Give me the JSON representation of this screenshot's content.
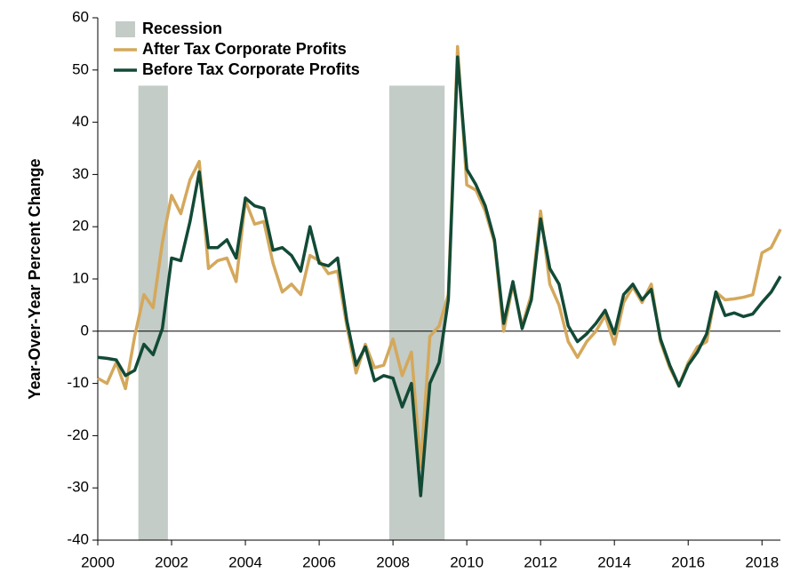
{
  "chart_data": {
    "type": "line",
    "y_label": "Year-Over-Year  Percent Change",
    "x": [
      2000,
      2000.25,
      2000.5,
      2000.75,
      2001,
      2001.25,
      2001.5,
      2001.75,
      2002,
      2002.25,
      2002.5,
      2002.75,
      2003,
      2003.25,
      2003.5,
      2003.75,
      2004,
      2004.25,
      2004.5,
      2004.75,
      2005,
      2005.25,
      2005.5,
      2005.75,
      2006,
      2006.25,
      2006.5,
      2006.75,
      2007,
      2007.25,
      2007.5,
      2007.75,
      2008,
      2008.25,
      2008.5,
      2008.75,
      2009,
      2009.25,
      2009.5,
      2009.75,
      2010,
      2010.25,
      2010.5,
      2010.75,
      2011,
      2011.25,
      2011.5,
      2011.75,
      2012,
      2012.25,
      2012.5,
      2012.75,
      2013,
      2013.25,
      2013.5,
      2013.75,
      2014,
      2014.25,
      2014.5,
      2014.75,
      2015,
      2015.25,
      2015.5,
      2015.75,
      2016,
      2016.25,
      2016.5,
      2016.75,
      2017,
      2017.25,
      2017.5,
      2017.75,
      2018,
      2018.25,
      2018.5
    ],
    "series": [
      {
        "name": "After Tax Corporate Profits",
        "color": "#d4a85c",
        "values": [
          -9,
          -10,
          -6,
          -11,
          -1,
          7,
          4.5,
          17,
          26,
          22.5,
          29,
          32.5,
          12,
          13.5,
          14,
          9.5,
          25,
          20.5,
          21,
          13,
          7.5,
          9,
          7,
          14.5,
          13.5,
          11,
          11.5,
          1,
          -8,
          -2.5,
          -7,
          -6.5,
          -1.5,
          -8.5,
          -4,
          -26,
          -1,
          1,
          7,
          54.5,
          28,
          27,
          23,
          17,
          0,
          9,
          1,
          7,
          23,
          9,
          5,
          -2,
          -5,
          -2,
          0,
          3,
          -2.5,
          5.5,
          8.5,
          5.5,
          9,
          -2,
          -7,
          -10.5,
          -6,
          -3,
          -2,
          7.5,
          6,
          6.2,
          6.5,
          7,
          15,
          16,
          19.5
        ]
      },
      {
        "name": "Before Tax Corporate Profits",
        "color": "#124a36",
        "values": [
          -5,
          -5.2,
          -5.5,
          -8.5,
          -7.5,
          -2.5,
          -4.5,
          0.5,
          14,
          13.5,
          21,
          30.5,
          16,
          16,
          17.5,
          14,
          25.5,
          24,
          23.5,
          15.5,
          16,
          14.5,
          11.5,
          20,
          13,
          12.5,
          14,
          2,
          -6.5,
          -3,
          -9.5,
          -8.5,
          -9,
          -14.5,
          -10,
          -31.5,
          -10,
          -6,
          6,
          52.5,
          31,
          28,
          24,
          17.5,
          1.5,
          9.5,
          0.5,
          6,
          21.5,
          12,
          9,
          1,
          -2,
          -0.5,
          1.5,
          4,
          -0.5,
          7,
          9,
          6,
          8,
          -1.5,
          -6.5,
          -10.5,
          -6.5,
          -4,
          -0.5,
          7.5,
          3,
          3.5,
          2.8,
          3.3,
          5.5,
          7.5,
          10.5
        ]
      }
    ],
    "recession": {
      "name": "Recession",
      "color": "#c3ccc6",
      "spans": [
        [
          2001.1,
          2001.9
        ],
        [
          2007.9,
          2009.4
        ]
      ],
      "top": 47
    },
    "xlim": [
      2000,
      2018.5
    ],
    "xticks": [
      2000,
      2002,
      2004,
      2006,
      2008,
      2010,
      2012,
      2014,
      2016,
      2018
    ],
    "ylim": [
      -40,
      60
    ],
    "yticks": [
      -40,
      -30,
      -20,
      -10,
      0,
      10,
      20,
      30,
      40,
      50,
      60
    ],
    "grid": false
  }
}
